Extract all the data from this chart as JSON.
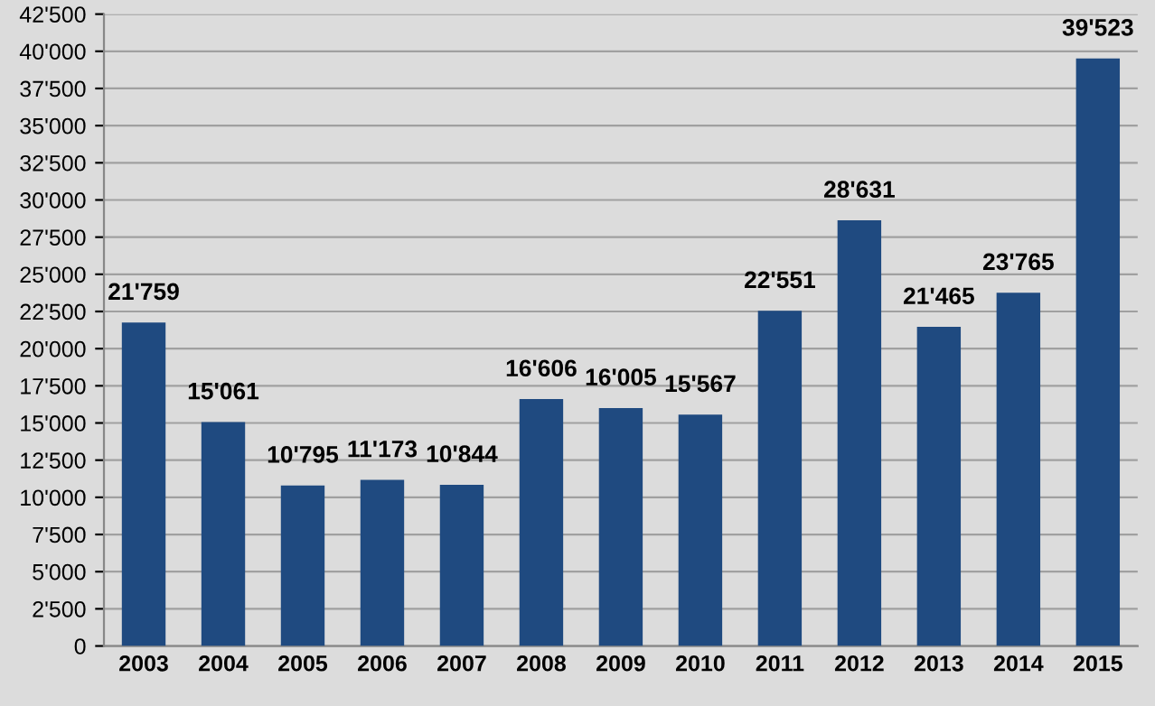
{
  "chart_data": {
    "type": "bar",
    "categories": [
      "2003",
      "2004",
      "2005",
      "2006",
      "2007",
      "2008",
      "2009",
      "2010",
      "2011",
      "2012",
      "2013",
      "2014",
      "2015"
    ],
    "values": [
      21759,
      15061,
      10795,
      11173,
      10844,
      16606,
      16005,
      15567,
      22551,
      28631,
      21465,
      23765,
      39523
    ],
    "value_labels": [
      "21'759",
      "15'061",
      "10'795",
      "11'173",
      "10'844",
      "16'606",
      "16'005",
      "15'567",
      "22'551",
      "28'631",
      "21'465",
      "23'765",
      "39'523"
    ],
    "color": "#1f4a80",
    "ylim": [
      0,
      42500
    ],
    "yticks": [
      0,
      {
        "value": 2500,
        "label": "2'500"
      },
      {
        "value": 5000,
        "label": "5'000"
      },
      {
        "value": 7500,
        "label": "7'500"
      },
      {
        "value": 10000,
        "label": "10'000"
      },
      {
        "value": 12500,
        "label": "12'500"
      },
      {
        "value": 15000,
        "label": "15'000"
      },
      {
        "value": 17500,
        "label": "17'500"
      },
      {
        "value": 20000,
        "label": "20'000"
      },
      {
        "value": 22500,
        "label": "22'500"
      },
      {
        "value": 25000,
        "label": "25'000"
      },
      {
        "value": 27500,
        "label": "27'500"
      },
      {
        "value": 30000,
        "label": "30'000"
      },
      {
        "value": 32500,
        "label": "32'500"
      },
      {
        "value": 35000,
        "label": "35'000"
      },
      {
        "value": 37500,
        "label": "37'500"
      },
      {
        "value": 40000,
        "label": "40'000"
      },
      {
        "value": 42500,
        "label": "42'500"
      }
    ],
    "grid": "y"
  }
}
